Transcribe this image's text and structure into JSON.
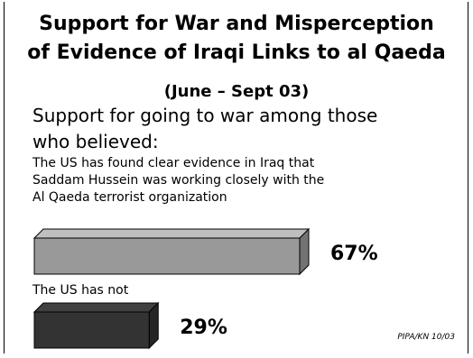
{
  "chart_data": {
    "type": "bar",
    "title_line1": "Support for War and Misperception",
    "title_line2": "of Evidence of Iraqi Links to al Qaeda",
    "subtitle": "(June – Sept 03)",
    "question_line1": "Support for going to war among those",
    "question_line2": "who believed:",
    "categories": [
      {
        "label_lines": [
          "The US has found clear evidence in Iraq that",
          "Saddam Hussein was working closely with the",
          "Al Qaeda terrorist organization"
        ],
        "value": 67,
        "value_label": "67%",
        "color": "#999999"
      },
      {
        "label_lines": [
          "The US has not"
        ],
        "value": 29,
        "value_label": "29%",
        "color": "#333333"
      }
    ],
    "xlim": [
      0,
      100
    ],
    "source": "PIPA/KN 10/03"
  }
}
